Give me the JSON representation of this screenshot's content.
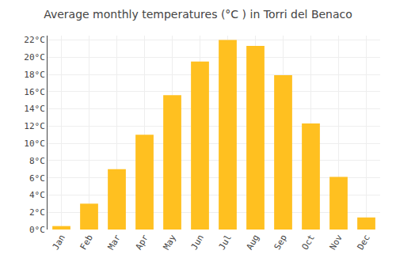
{
  "chart_data": {
    "type": "bar",
    "title": "Average monthly temperatures (°C ) in Torri del Benaco",
    "categories": [
      "Jan",
      "Feb",
      "Mar",
      "Apr",
      "May",
      "Jun",
      "Jul",
      "Aug",
      "Sep",
      "Oct",
      "Nov",
      "Dec"
    ],
    "values": [
      0.4,
      3.0,
      7.0,
      11.0,
      15.6,
      19.5,
      22.0,
      21.3,
      17.9,
      12.3,
      6.1,
      1.4
    ],
    "color": "#FFC020",
    "ylim": [
      0,
      22.5
    ],
    "yticks": [
      {
        "value": 0,
        "label": "0°C"
      },
      {
        "value": 2,
        "label": "2°C"
      },
      {
        "value": 4,
        "label": "4°C"
      },
      {
        "value": 6,
        "label": "6°C"
      },
      {
        "value": 8,
        "label": "8°C"
      },
      {
        "value": 10,
        "label": "10°C"
      },
      {
        "value": 12,
        "label": "12°C"
      },
      {
        "value": 14,
        "label": "14°C"
      },
      {
        "value": 16,
        "label": "16°C"
      },
      {
        "value": 18,
        "label": "18°C"
      },
      {
        "value": 20,
        "label": "20°C"
      },
      {
        "value": 22,
        "label": "22°C"
      }
    ],
    "grid": true
  }
}
